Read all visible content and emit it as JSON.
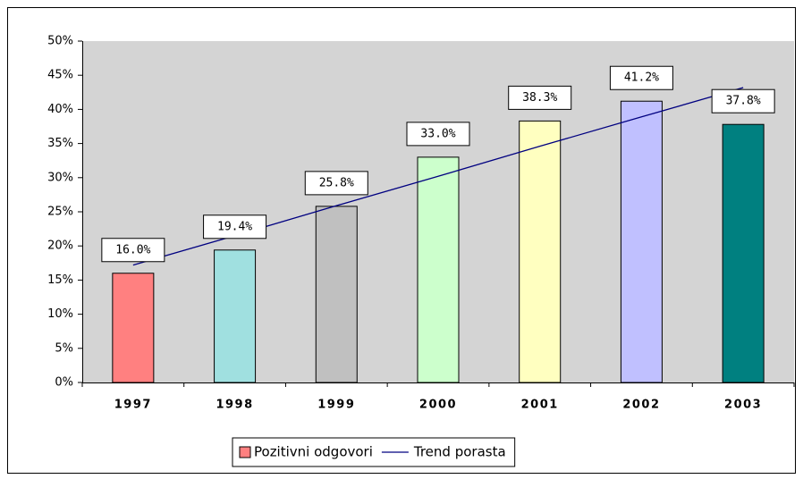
{
  "chart_data": {
    "type": "bar",
    "categories": [
      "1997",
      "1998",
      "1999",
      "2000",
      "2001",
      "2002",
      "2003"
    ],
    "series": [
      {
        "name": "Pozitivni odgovori",
        "colors": [
          "#ff8080",
          "#a0e0e0",
          "#c0c0c0",
          "#ccffcc",
          "#ffffc0",
          "#c0c0ff",
          "#008080"
        ],
        "values": [
          16.0,
          19.4,
          25.8,
          33.0,
          38.3,
          41.2,
          37.8
        ],
        "value_labels": [
          "16.0%",
          "19.4%",
          "25.8%",
          "33.0%",
          "38.3%",
          "41.2%",
          "37.8%"
        ]
      },
      {
        "name": "Trend porasta",
        "type": "line",
        "color": "#000080",
        "values": [
          17.2,
          21.5,
          25.9,
          30.2,
          34.6,
          38.9,
          43.2
        ]
      }
    ],
    "ylim": [
      0,
      50
    ],
    "yticks": [
      {
        "value": 0,
        "label": "0%"
      },
      {
        "value": 5,
        "label": "5%"
      },
      {
        "value": 10,
        "label": "10%"
      },
      {
        "value": 15,
        "label": "15%"
      },
      {
        "value": 20,
        "label": "20%"
      },
      {
        "value": 25,
        "label": "25%"
      },
      {
        "value": 30,
        "label": "30%"
      },
      {
        "value": 35,
        "label": "35%"
      },
      {
        "value": 40,
        "label": "40%"
      },
      {
        "value": 45,
        "label": "45%"
      },
      {
        "value": 50,
        "label": "50%"
      }
    ],
    "plot_background": "#d4d4d4"
  }
}
